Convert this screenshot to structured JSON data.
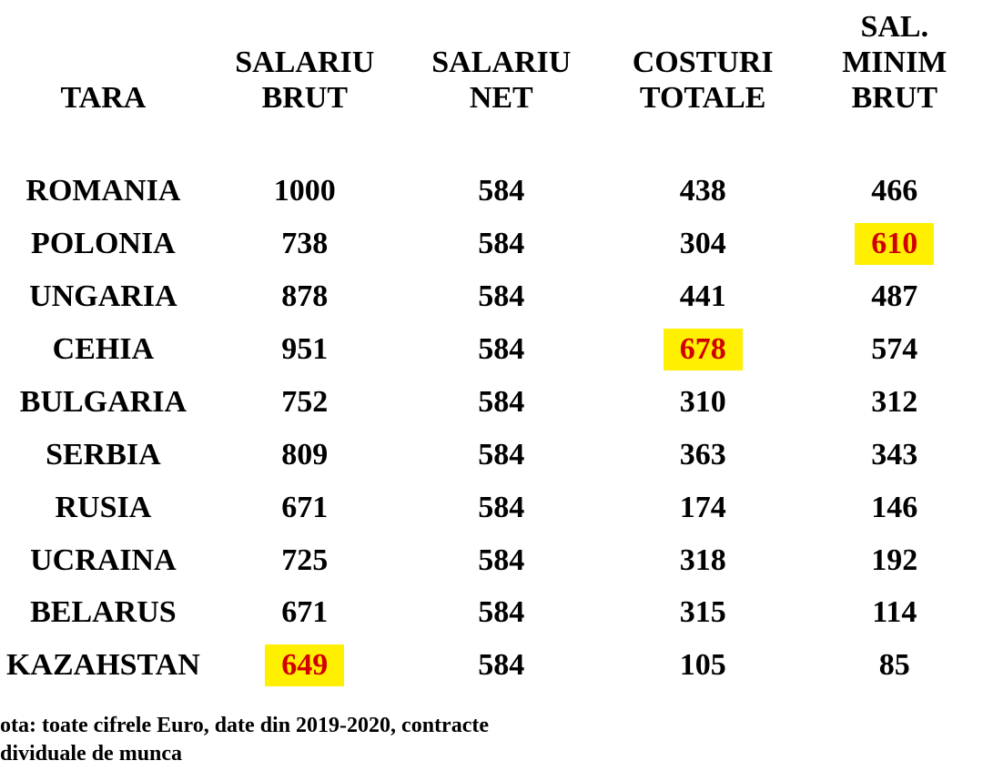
{
  "table": {
    "type": "table",
    "colors": {
      "text": "#000000",
      "highlight_bg": "#ffef00",
      "highlight_text": "#d10000",
      "background": "#ffffff"
    },
    "fonts": {
      "header_size_pt": 26,
      "cell_size_pt": 26,
      "footnote_size_pt": 18,
      "weight": "bold",
      "family": "Times New Roman"
    },
    "columns": [
      {
        "lines": [
          "TARA"
        ],
        "width_pct": 21,
        "align": "center"
      },
      {
        "lines": [
          "SALARIU",
          "BRUT"
        ],
        "width_pct": 20,
        "align": "center"
      },
      {
        "lines": [
          "SALARIU",
          "NET"
        ],
        "width_pct": 20,
        "align": "center"
      },
      {
        "lines": [
          "COSTURI",
          "TOTALE"
        ],
        "width_pct": 21,
        "align": "center"
      },
      {
        "lines": [
          "SAL.",
          "MINIM",
          "BRUT"
        ],
        "width_pct": 18,
        "align": "center"
      }
    ],
    "rows": [
      {
        "country": "ROMANIA",
        "brut": "1000",
        "net": "584",
        "costuri": "438",
        "minim": "466"
      },
      {
        "country": "POLONIA",
        "brut": "738",
        "net": "584",
        "costuri": "304",
        "minim": "610",
        "highlight": "minim"
      },
      {
        "country": "UNGARIA",
        "brut": "878",
        "net": "584",
        "costuri": "441",
        "minim": "487"
      },
      {
        "country": "CEHIA",
        "brut": "951",
        "net": "584",
        "costuri": "678",
        "minim": "574",
        "highlight": "costuri"
      },
      {
        "country": "BULGARIA",
        "brut": "752",
        "net": "584",
        "costuri": "310",
        "minim": "312"
      },
      {
        "country": "SERBIA",
        "brut": "809",
        "net": "584",
        "costuri": "363",
        "minim": "343"
      },
      {
        "country": "RUSIA",
        "brut": "671",
        "net": "584",
        "costuri": "174",
        "minim": "146"
      },
      {
        "country": "UCRAINA",
        "brut": "725",
        "net": "584",
        "costuri": "318",
        "minim": "192"
      },
      {
        "country": "BELARUS",
        "brut": "671",
        "net": "584",
        "costuri": "315",
        "minim": "114"
      },
      {
        "country": "KAZAHSTAN",
        "brut": "649",
        "net": "584",
        "costuri": "105",
        "minim": "85",
        "highlight": "brut"
      }
    ]
  },
  "footnote": {
    "line1": "ota: toate cifrele Euro, date din 2019-2020, contracte",
    "line2": "dividuale de munca"
  }
}
